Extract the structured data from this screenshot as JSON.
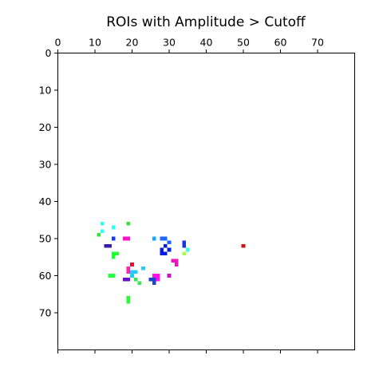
{
  "chart_data": {
    "type": "heatmap",
    "title": "ROIs with Amplitude > Cutoff",
    "xlabel": "",
    "ylabel": "",
    "xlim": [
      0,
      80
    ],
    "ylim": [
      80,
      0
    ],
    "x_axis_position": "top",
    "y_axis_inverted": true,
    "grid": false,
    "legend": "none",
    "x_ticks": [
      0,
      10,
      20,
      30,
      40,
      50,
      60,
      70
    ],
    "y_ticks": [
      0,
      10,
      20,
      30,
      40,
      50,
      60,
      70
    ],
    "background_color": "#ffffff",
    "pixels": [
      {
        "x": 11,
        "y": 49,
        "color": "#33e633"
      },
      {
        "x": 12,
        "y": 46,
        "color": "#33ffee"
      },
      {
        "x": 12,
        "y": 48,
        "color": "#33ffee"
      },
      {
        "x": 13,
        "y": 52,
        "color": "#3a1aa8"
      },
      {
        "x": 14,
        "y": 52,
        "color": "#3a1aa8"
      },
      {
        "x": 15,
        "y": 47,
        "color": "#33ffee"
      },
      {
        "x": 15,
        "y": 50,
        "color": "#1a3ae6"
      },
      {
        "x": 15,
        "y": 54,
        "color": "#22ff33"
      },
      {
        "x": 16,
        "y": 54,
        "color": "#22ff33"
      },
      {
        "x": 15,
        "y": 55,
        "color": "#22ff33"
      },
      {
        "x": 14,
        "y": 60,
        "color": "#22ff44"
      },
      {
        "x": 15,
        "y": 60,
        "color": "#22ff44"
      },
      {
        "x": 18,
        "y": 50,
        "color": "#ff11cc"
      },
      {
        "x": 19,
        "y": 50,
        "color": "#ff11cc"
      },
      {
        "x": 19,
        "y": 46,
        "color": "#33e633"
      },
      {
        "x": 20,
        "y": 57,
        "color": "#e6113a"
      },
      {
        "x": 19,
        "y": 58,
        "color": "#ff22aa"
      },
      {
        "x": 19,
        "y": 59,
        "color": "#ff22aa"
      },
      {
        "x": 20,
        "y": 59,
        "color": "#22ccff"
      },
      {
        "x": 21,
        "y": 59,
        "color": "#22ccff"
      },
      {
        "x": 20,
        "y": 60,
        "color": "#22ccff"
      },
      {
        "x": 23,
        "y": 58,
        "color": "#22ccff"
      },
      {
        "x": 18,
        "y": 61,
        "color": "#6611cc"
      },
      {
        "x": 19,
        "y": 61,
        "color": "#6611cc"
      },
      {
        "x": 21,
        "y": 61,
        "color": "#33e655"
      },
      {
        "x": 22,
        "y": 62,
        "color": "#33e655"
      },
      {
        "x": 19,
        "y": 66,
        "color": "#22ff33"
      },
      {
        "x": 19,
        "y": 67,
        "color": "#22ff33"
      },
      {
        "x": 26,
        "y": 50,
        "color": "#11aaff"
      },
      {
        "x": 28,
        "y": 50,
        "color": "#1a66ff"
      },
      {
        "x": 29,
        "y": 50,
        "color": "#1a66ff"
      },
      {
        "x": 30,
        "y": 51,
        "color": "#1a66ff"
      },
      {
        "x": 29,
        "y": 52,
        "color": "#0a1ae6"
      },
      {
        "x": 28,
        "y": 53,
        "color": "#0a1ae6"
      },
      {
        "x": 30,
        "y": 53,
        "color": "#0a1ae6"
      },
      {
        "x": 28,
        "y": 54,
        "color": "#0a1ae6"
      },
      {
        "x": 29,
        "y": 54,
        "color": "#0a1ae6"
      },
      {
        "x": 25,
        "y": 61,
        "color": "#1a44cc"
      },
      {
        "x": 26,
        "y": 61,
        "color": "#1a44cc"
      },
      {
        "x": 26,
        "y": 62,
        "color": "#1a44cc"
      },
      {
        "x": 26,
        "y": 60,
        "color": "#ff11ee"
      },
      {
        "x": 27,
        "y": 60,
        "color": "#ff11ee"
      },
      {
        "x": 27,
        "y": 61,
        "color": "#ff11ee"
      },
      {
        "x": 30,
        "y": 60,
        "color": "#cc11cc"
      },
      {
        "x": 31,
        "y": 56,
        "color": "#ee11bb"
      },
      {
        "x": 32,
        "y": 56,
        "color": "#ee11bb"
      },
      {
        "x": 32,
        "y": 57,
        "color": "#ee11bb"
      },
      {
        "x": 34,
        "y": 51,
        "color": "#1a33dd"
      },
      {
        "x": 34,
        "y": 52,
        "color": "#1a33dd"
      },
      {
        "x": 35,
        "y": 53,
        "color": "#33ffdd"
      },
      {
        "x": 34,
        "y": 54,
        "color": "#aaff44"
      },
      {
        "x": 50,
        "y": 52,
        "color": "#cc1111"
      }
    ]
  }
}
